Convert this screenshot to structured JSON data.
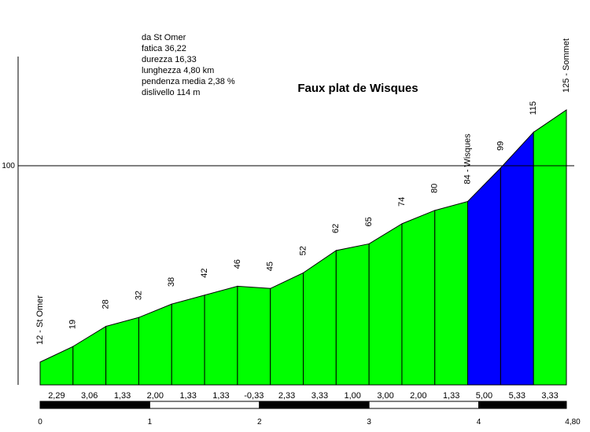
{
  "chart_data": {
    "type": "area",
    "title": "Faux plat de Wisques",
    "info": [
      "da St Omer",
      "fatica 36,22",
      "durezza 16,33",
      "lunghezza 4,80 km",
      "pendenza media 2,38 %",
      "dislivello 114 m"
    ],
    "x_km": [
      0,
      0.3,
      0.6,
      0.9,
      1.2,
      1.5,
      1.8,
      2.1,
      2.4,
      2.7,
      3.0,
      3.3,
      3.6,
      3.9,
      4.2,
      4.5,
      4.8
    ],
    "elevations": [
      12,
      19,
      28,
      32,
      38,
      42,
      46,
      45,
      52,
      62,
      65,
      74,
      80,
      84,
      99,
      115,
      125
    ],
    "elevation_labels": [
      "12 - St Omer",
      "19",
      "28",
      "32",
      "38",
      "42",
      "46",
      "45",
      "52",
      "62",
      "65",
      "74",
      "80",
      "84 - Wisques",
      "99",
      "115",
      "125 - Sommet"
    ],
    "gradients": [
      "2,29",
      "3,06",
      "1,33",
      "2,00",
      "1,33",
      "1,33",
      "-0,33",
      "2,33",
      "3,33",
      "1,00",
      "3,00",
      "2,00",
      "1,33",
      "5,00",
      "5,33",
      "3,33"
    ],
    "segment_colors": [
      "#00ff00",
      "#00ff00",
      "#00ff00",
      "#00ff00",
      "#00ff00",
      "#00ff00",
      "#00ff00",
      "#00ff00",
      "#00ff00",
      "#00ff00",
      "#00ff00",
      "#00ff00",
      "#00ff00",
      "#0000ff",
      "#0000ff",
      "#00ff00"
    ],
    "x_ticks": [
      "0",
      "1",
      "2",
      "3",
      "4",
      "4,80"
    ],
    "x_tick_values": [
      0,
      1,
      2,
      3,
      4,
      4.8
    ],
    "y_reference": 100,
    "y_reference_label": "100",
    "xlim": [
      0,
      4.8
    ],
    "ylim": [
      0,
      140
    ]
  }
}
